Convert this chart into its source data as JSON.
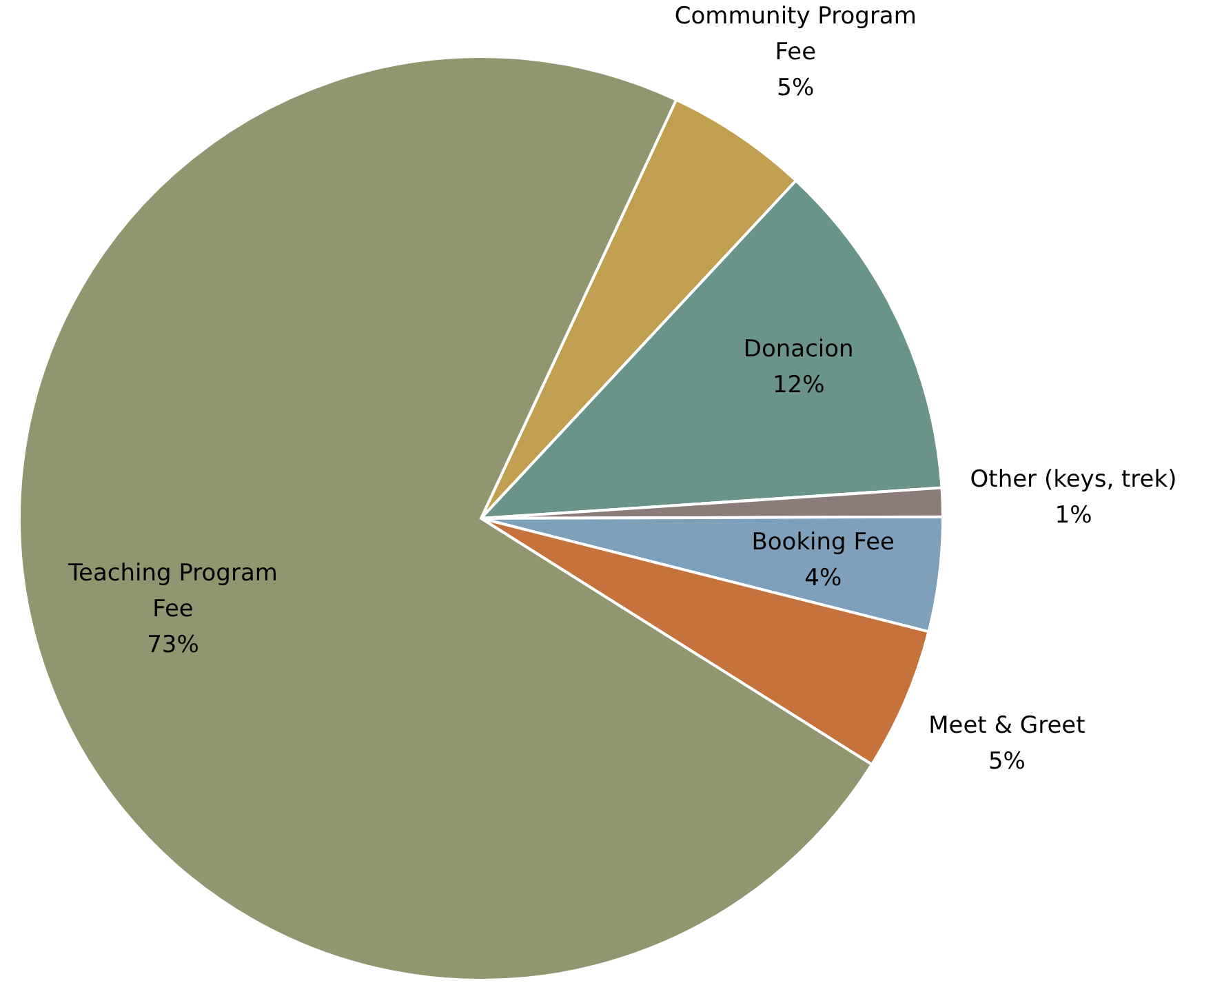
{
  "chart_data": {
    "type": "pie",
    "categories": [
      "Community Program Fee",
      "Donacion",
      "Other (keys, trek)",
      "Booking Fee",
      "Meet & Greet",
      "Teaching Program Fee"
    ],
    "values": [
      5,
      12,
      1,
      4,
      5,
      73
    ],
    "value_labels": [
      "5%",
      "12%",
      "1%",
      "4%",
      "5%",
      "73%"
    ],
    "colors": [
      "#c19f50",
      "#6a9489",
      "#8c7b78",
      "#7fa0ba",
      "#c5723d",
      "#919670"
    ]
  }
}
